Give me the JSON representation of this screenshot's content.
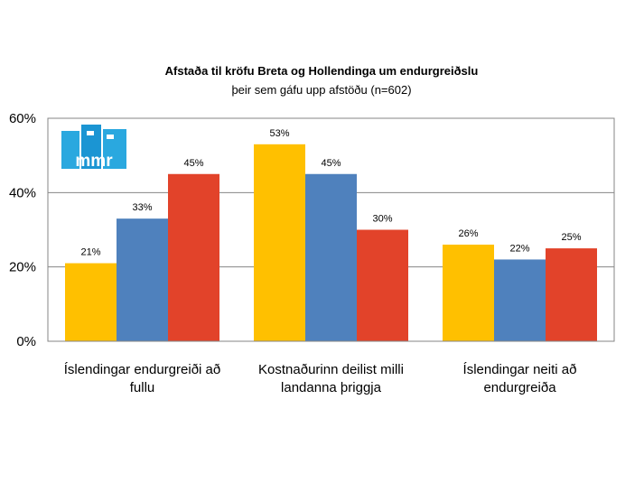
{
  "chart_data": {
    "type": "bar",
    "title": "Afstaða til kröfu Breta og Hollendinga um endurgreiðslu",
    "subtitle": "þeir sem gáfu upp afstöðu (n=602)",
    "categories": [
      [
        "Íslendingar endurgreiði að",
        "fullu"
      ],
      [
        "Kostnaðurinn deilist milli",
        "landanna þriggja"
      ],
      [
        "Íslendingar neiti að",
        "endurgreiða"
      ]
    ],
    "series": [
      {
        "color": "#FFC000",
        "values": [
          21,
          53,
          26
        ]
      },
      {
        "color": "#4F81BD",
        "values": [
          33,
          45,
          22
        ]
      },
      {
        "color": "#E2432A",
        "values": [
          45,
          30,
          25
        ]
      }
    ],
    "data_labels": [
      [
        "21%",
        "53%",
        "26%"
      ],
      [
        "33%",
        "45%",
        "22%"
      ],
      [
        "45%",
        "30%",
        "25%"
      ]
    ],
    "y_ticks": [
      "0%",
      "20%",
      "40%",
      "60%"
    ],
    "ylim": [
      0,
      60
    ],
    "grid": true,
    "legend": "none"
  },
  "logo": {
    "text": "mmr",
    "colors": [
      "#2AA8DF",
      "#0E84C6"
    ]
  }
}
